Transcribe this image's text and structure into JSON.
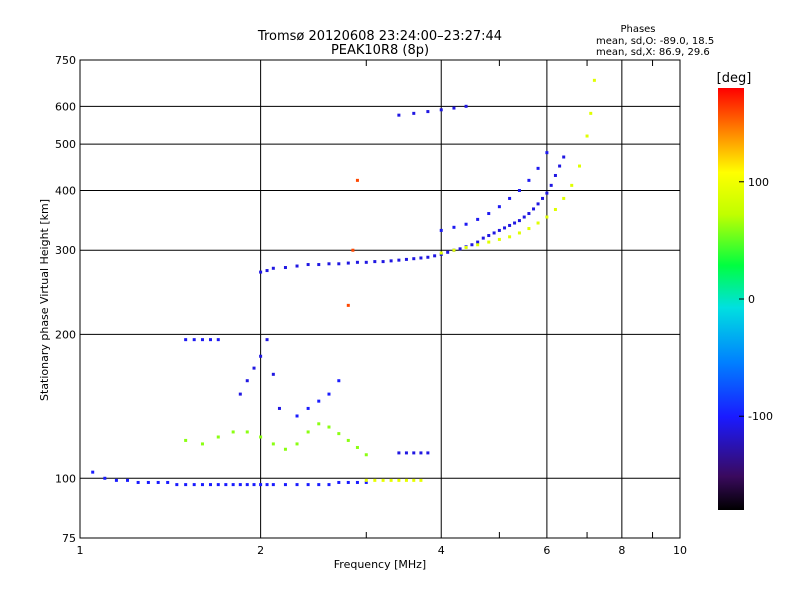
{
  "chart_data": {
    "type": "scatter",
    "title": "Tromsø 20120608 23:24:00–23:27:44",
    "subtitle": "PEAK10R8 (8p)",
    "xlabel": "Frequency [MHz]",
    "ylabel": "Stationary phase Virtual Height [km]",
    "x_scale": "log",
    "y_scale": "log",
    "xlim": [
      1,
      10
    ],
    "ylim": [
      75,
      750
    ],
    "grid": true,
    "x_ticks": [
      1,
      2,
      4,
      6,
      8,
      10
    ],
    "x_tick_labels": [
      "1",
      "2",
      "4",
      "6",
      "8",
      "10"
    ],
    "y_ticks": [
      75,
      100,
      200,
      300,
      400,
      500,
      600,
      750
    ],
    "y_tick_labels": [
      "75",
      "100",
      "200",
      "300",
      "400",
      "500",
      "600",
      "750"
    ],
    "annotation": {
      "heading": "Phases",
      "line1": "mean, sd,O: -89.0, 18.5",
      "line2": "mean, sd,X:  86.9, 29.6"
    },
    "colorbar": {
      "label": "[deg]",
      "range": [
        -180,
        180
      ],
      "ticks": [
        100,
        0,
        -100
      ],
      "tick_labels": [
        "100",
        "0",
        "-100"
      ]
    },
    "series": [
      {
        "x": [
          1.05,
          1.1,
          1.15,
          1.2,
          1.25,
          1.3,
          1.35,
          1.4,
          1.45,
          1.5,
          1.55,
          1.6,
          1.65,
          1.7,
          1.75,
          1.8,
          1.85,
          1.9,
          1.95,
          2.0,
          2.05,
          2.1,
          2.2,
          2.3,
          2.4,
          2.5,
          2.6,
          2.7,
          2.8,
          2.9,
          3.0
        ],
        "y": [
          103,
          100,
          99,
          99,
          98,
          98,
          98,
          98,
          97,
          97,
          97,
          97,
          97,
          97,
          97,
          97,
          97,
          97,
          97,
          97,
          97,
          97,
          97,
          97,
          97,
          97,
          97,
          98,
          98,
          98,
          98
        ],
        "phase": -100
      },
      {
        "x": [
          2.0,
          2.05,
          2.1,
          2.2,
          2.3,
          2.4,
          2.5,
          2.6,
          2.7,
          2.8,
          2.9,
          3.0,
          3.1,
          3.2,
          3.3,
          3.4,
          3.5,
          3.6,
          3.7,
          3.8,
          3.9,
          4.0,
          4.1,
          4.2,
          4.3,
          4.4,
          4.5,
          4.6,
          4.7,
          4.8,
          4.9,
          5.0,
          5.1,
          5.2,
          5.3,
          5.4,
          5.5,
          5.6,
          5.7,
          5.8,
          5.9,
          6.0,
          6.1,
          6.2,
          6.3,
          6.4
        ],
        "y": [
          270,
          272,
          275,
          276,
          278,
          280,
          280,
          281,
          281,
          282,
          283,
          283,
          284,
          284,
          285,
          286,
          287,
          288,
          289,
          290,
          292,
          294,
          297,
          300,
          302,
          305,
          308,
          312,
          318,
          322,
          326,
          330,
          334,
          338,
          342,
          346,
          352,
          358,
          366,
          375,
          385,
          395,
          410,
          430,
          450,
          470
        ],
        "phase": -110
      },
      {
        "x": [
          4.0,
          4.2,
          4.4,
          4.6,
          4.8,
          5.0,
          5.2,
          5.4,
          5.6,
          5.8,
          6.0,
          6.2,
          6.4,
          6.6,
          6.8,
          7.0,
          7.1,
          7.2
        ],
        "y": [
          296,
          300,
          304,
          308,
          312,
          316,
          320,
          326,
          333,
          342,
          352,
          365,
          385,
          410,
          450,
          520,
          580,
          680
        ],
        "phase": 90
      },
      {
        "x": [
          4.0,
          4.2,
          4.4,
          4.6,
          4.8,
          5.0,
          5.2,
          5.4,
          5.6,
          5.8,
          6.0
        ],
        "y": [
          330,
          335,
          340,
          348,
          358,
          370,
          385,
          400,
          420,
          445,
          480
        ],
        "phase": -105
      },
      {
        "x": [
          1.5,
          1.6,
          1.7,
          1.8,
          1.9,
          2.0,
          2.1,
          2.2,
          2.3,
          2.4,
          2.5,
          2.6,
          2.7,
          2.8,
          2.9,
          3.0
        ],
        "y": [
          120,
          118,
          122,
          125,
          125,
          122,
          118,
          115,
          118,
          125,
          130,
          128,
          124,
          120,
          116,
          112
        ],
        "phase": 60
      },
      {
        "x": [
          1.85,
          1.9,
          1.95,
          2.0,
          2.05,
          2.1,
          2.15
        ],
        "y": [
          150,
          160,
          170,
          180,
          195,
          165,
          140
        ],
        "phase": -110
      },
      {
        "x": [
          2.3,
          2.4,
          2.5,
          2.6,
          2.7
        ],
        "y": [
          135,
          140,
          145,
          150,
          160
        ],
        "phase": -100
      },
      {
        "x": [
          3.0,
          3.1,
          3.2,
          3.3,
          3.4,
          3.5,
          3.6,
          3.7
        ],
        "y": [
          99,
          99,
          99,
          99,
          99,
          99,
          99,
          99
        ],
        "phase": 95
      },
      {
        "x": [
          3.4,
          3.5,
          3.6,
          3.7,
          3.8
        ],
        "y": [
          113,
          113,
          113,
          113,
          113
        ],
        "phase": -110
      },
      {
        "x": [
          3.4,
          3.6,
          3.8,
          4.0,
          4.2,
          4.4
        ],
        "y": [
          575,
          580,
          585,
          590,
          595,
          600
        ],
        "phase": -110
      },
      {
        "x": [
          1.5,
          1.55,
          1.6,
          1.65,
          1.7
        ],
        "y": [
          195,
          195,
          195,
          195,
          195
        ],
        "phase": -105
      },
      {
        "x": [
          2.8,
          2.85,
          2.9
        ],
        "y": [
          230,
          300,
          420
        ],
        "phase": 160
      }
    ]
  }
}
